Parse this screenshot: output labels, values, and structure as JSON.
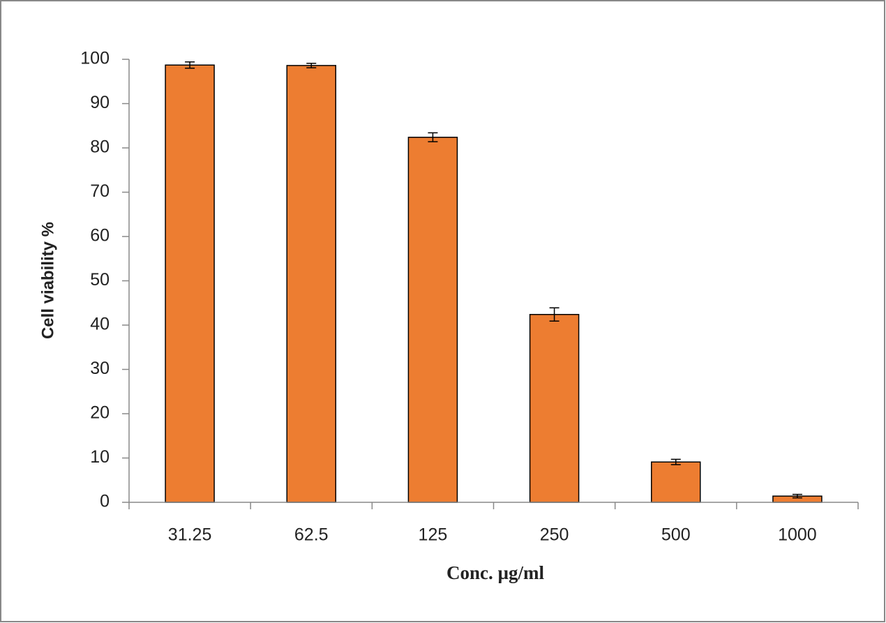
{
  "chart_data": {
    "type": "bar",
    "x_label": "Conc. µg/ml",
    "y_label": "Cell viability %",
    "categories": [
      "31.25",
      "62.5",
      "125",
      "250",
      "500",
      "1000"
    ],
    "values": [
      98.7,
      98.6,
      82.4,
      42.4,
      9.1,
      1.4
    ],
    "errors": [
      0.7,
      0.5,
      1.0,
      1.5,
      0.6,
      0.4
    ],
    "color": "#ed7d31",
    "ylim": [
      0,
      100
    ],
    "yticks": [
      0,
      10,
      20,
      30,
      40,
      50,
      60,
      70,
      80,
      90,
      100
    ],
    "grid": false
  }
}
